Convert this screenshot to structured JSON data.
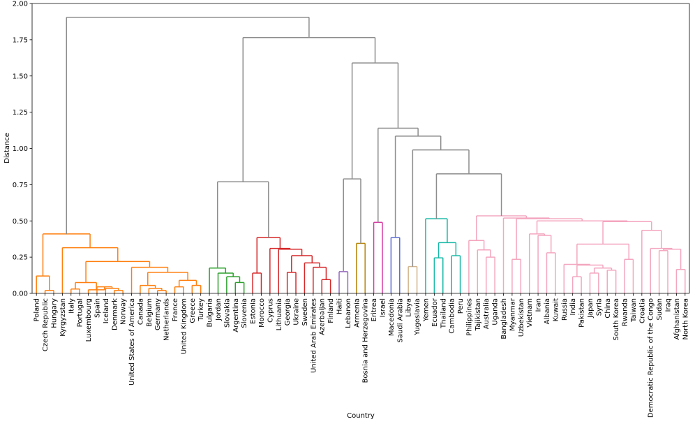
{
  "chart_data": {
    "type": "dendrogram",
    "title": "",
    "xlabel": "Country",
    "ylabel": "Distance",
    "ylim": [
      0,
      2.0
    ],
    "yticks": [
      {
        "value": 0.0,
        "label": "0.00"
      },
      {
        "value": 0.25,
        "label": "0.25"
      },
      {
        "value": 0.5,
        "label": "0.50"
      },
      {
        "value": 0.75,
        "label": "0.75"
      },
      {
        "value": 1.0,
        "label": "1.00"
      },
      {
        "value": 1.25,
        "label": "1.25"
      },
      {
        "value": 1.5,
        "label": "1.50"
      },
      {
        "value": 1.75,
        "label": "1.75"
      },
      {
        "value": 2.0,
        "label": "2.00"
      }
    ],
    "colors": {
      "orange": "#ff7f0e",
      "green": "#2ca02c",
      "red": "#d62728",
      "purple": "#9467bd",
      "brown": "#b8860b",
      "magenta": "#d63aa4",
      "slateblue": "#5b6bd0",
      "tan": "#d2b48c",
      "teal": "#17b8a6",
      "pink": "#f4a6bf",
      "gray": "#8c8c8c"
    },
    "leaves": [
      "Poland",
      "Czech Republic",
      "Hungary",
      "Kyrgyzstan",
      "Italy",
      "Portugal",
      "Luxembourg",
      "Spain",
      "Iceland",
      "Denmark",
      "Norway",
      "United States of America",
      "Canada",
      "Belgium",
      "Germany",
      "Netherlands",
      "France",
      "United Kingdom",
      "Greece",
      "Turkey",
      "Bulgaria",
      "Jordan",
      "Slovakia",
      "Argentina",
      "Slovenia",
      "Estonia",
      "Morocco",
      "Cyprus",
      "Lithuania",
      "Georgia",
      "Ukraine",
      "Sweden",
      "United Arab Emirates",
      "Azerbaijan",
      "Finland",
      "Haiti",
      "Lebanon",
      "Armenia",
      "Bosnia and Herzegovina",
      "Eritrea",
      "Israel",
      "Macedonia",
      "Saudi Arabia",
      "Libya",
      "Yugoslavia",
      "Yemen",
      "Ecuador",
      "Thailand",
      "Cambodia",
      "Peru",
      "Philippines",
      "Tajikistan",
      "Australia",
      "Uganda",
      "Bangladesh",
      "Myanmar",
      "Uzbekistan",
      "Vietnam",
      "Iran",
      "Albania",
      "Kuwait",
      "Russia",
      "India",
      "Pakistan",
      "Japan",
      "Syria",
      "China",
      "South Korea",
      "Rwanda",
      "Taiwan",
      "Croatia",
      "Democratic Republic of the Congo",
      "Sudan",
      "Iraq",
      "Afghanistan",
      "North Korea"
    ],
    "merges": [
      {
        "a": "Czech Republic",
        "b": "Hungary",
        "height": 0.02,
        "id": "c_cz_hu",
        "color": "orange"
      },
      {
        "a": "Poland",
        "b": "c_cz_hu",
        "height": 0.12,
        "id": "c_pl",
        "color": "orange"
      },
      {
        "a": "Italy",
        "b": "Portugal",
        "height": 0.03,
        "id": "c_it_pt",
        "color": "orange"
      },
      {
        "a": "Denmark",
        "b": "Norway",
        "height": 0.02,
        "id": "c_dk_no",
        "color": "orange"
      },
      {
        "a": "Iceland",
        "b": "c_dk_no",
        "height": 0.035,
        "id": "c_is",
        "color": "orange"
      },
      {
        "a": "Spain",
        "b": "c_is",
        "height": 0.045,
        "id": "c_es",
        "color": "orange"
      },
      {
        "a": "Luxembourg",
        "b": "c_es",
        "height": 0.025,
        "id": "c_lu",
        "color": "orange"
      },
      {
        "a": "c_it_pt",
        "b": "c_lu",
        "height": 0.075,
        "id": "c_southn",
        "color": "orange"
      },
      {
        "a": "Germany",
        "b": "Netherlands",
        "height": 0.02,
        "id": "c_de_nl",
        "color": "orange"
      },
      {
        "a": "Belgium",
        "b": "c_de_nl",
        "height": 0.035,
        "id": "c_be",
        "color": "orange"
      },
      {
        "a": "Canada",
        "b": "c_be",
        "height": 0.055,
        "id": "c_ca",
        "color": "orange"
      },
      {
        "a": "France",
        "b": "United Kingdom",
        "height": 0.045,
        "id": "c_fr_uk",
        "color": "orange"
      },
      {
        "a": "Greece",
        "b": "Turkey",
        "height": 0.055,
        "id": "c_gr_tr",
        "color": "orange"
      },
      {
        "a": "c_fr_uk",
        "b": "c_gr_tr",
        "height": 0.09,
        "id": "c_frgr",
        "color": "orange"
      },
      {
        "a": "c_ca",
        "b": "c_frgr",
        "height": 0.145,
        "id": "c_west",
        "color": "orange"
      },
      {
        "a": "United States of America",
        "b": "c_west",
        "height": 0.18,
        "id": "c_us",
        "color": "orange"
      },
      {
        "a": "c_southn",
        "b": "c_us",
        "height": 0.22,
        "id": "c_euro",
        "color": "orange"
      },
      {
        "a": "Kyrgyzstan",
        "b": "c_euro",
        "height": 0.315,
        "id": "c_kg",
        "color": "orange"
      },
      {
        "a": "c_pl",
        "b": "c_kg",
        "height": 0.41,
        "id": "c_orange",
        "color": "orange"
      },
      {
        "a": "Argentina",
        "b": "Slovenia",
        "height": 0.075,
        "id": "c_ar_si",
        "color": "green"
      },
      {
        "a": "Slovakia",
        "b": "c_ar_si",
        "height": 0.115,
        "id": "c_sk",
        "color": "green"
      },
      {
        "a": "Jordan",
        "b": "c_sk",
        "height": 0.14,
        "id": "c_jo",
        "color": "green"
      },
      {
        "a": "Bulgaria",
        "b": "c_jo",
        "height": 0.175,
        "id": "c_green",
        "color": "green"
      },
      {
        "a": "Estonia",
        "b": "Morocco",
        "height": 0.14,
        "id": "c_ee_ma",
        "color": "red"
      },
      {
        "a": "Georgia",
        "b": "Ukraine",
        "height": 0.145,
        "id": "c_ge_ua",
        "color": "red"
      },
      {
        "a": "Azerbaijan",
        "b": "Finland",
        "height": 0.095,
        "id": "c_az_fi",
        "color": "red"
      },
      {
        "a": "United Arab Emirates",
        "b": "c_az_fi",
        "height": 0.18,
        "id": "c_uae",
        "color": "red"
      },
      {
        "a": "Sweden",
        "b": "c_uae",
        "height": 0.21,
        "id": "c_se",
        "color": "red"
      },
      {
        "a": "c_ge_ua",
        "b": "c_se",
        "height": 0.26,
        "id": "c_geo",
        "color": "red"
      },
      {
        "a": "Lithuania",
        "b": "c_geo",
        "height": 0.305,
        "id": "c_lt",
        "color": "red"
      },
      {
        "a": "Cyprus",
        "b": "Lithuania",
        "height": 0.24,
        "id": "c_cy_dummy",
        "color": "red",
        "skip": true
      },
      {
        "a": "Cyprus",
        "b": "c_lt",
        "height": 0.31,
        "id": "c_cy",
        "color": "red"
      },
      {
        "a": "c_ee_ma",
        "b": "c_cy",
        "height": 0.385,
        "id": "c_red",
        "color": "red"
      },
      {
        "a": "c_green",
        "b": "c_red",
        "height": 0.77,
        "id": "c_gr_rd",
        "color": "gray"
      },
      {
        "a": "Haiti",
        "b": "Lebanon",
        "height": 0.15,
        "id": "c_purple",
        "color": "purple"
      },
      {
        "a": "Armenia",
        "b": "Bosnia and Herzegovina",
        "height": 0.345,
        "id": "c_brown",
        "color": "brown"
      },
      {
        "a": "c_purple",
        "b": "c_brown",
        "height": 0.79,
        "id": "c_pb",
        "color": "gray"
      },
      {
        "a": "Eritrea",
        "b": "Israel",
        "height": 0.49,
        "id": "c_magenta",
        "color": "magenta"
      },
      {
        "a": "Macedonia",
        "b": "Saudi Arabia",
        "height": 0.385,
        "id": "c_slate",
        "color": "slateblue"
      },
      {
        "a": "Libya",
        "b": "Yugoslavia",
        "height": 0.185,
        "id": "c_tan",
        "color": "tan"
      },
      {
        "a": "Ecuador",
        "b": "Thailand",
        "height": 0.245,
        "id": "c_ec_th",
        "color": "teal"
      },
      {
        "a": "Cambodia",
        "b": "Peru",
        "height": 0.26,
        "id": "c_kh_pe",
        "color": "teal"
      },
      {
        "a": "c_ec_th",
        "b": "c_kh_pe",
        "height": 0.35,
        "id": "c_ectp",
        "color": "teal"
      },
      {
        "a": "Yemen",
        "b": "c_ectp",
        "height": 0.515,
        "id": "c_teal",
        "color": "teal"
      },
      {
        "a": "Australia",
        "b": "Uganda",
        "height": 0.25,
        "id": "c_au_ug",
        "color": "pink"
      },
      {
        "a": "Tajikistan",
        "b": "c_au_ug",
        "height": 0.3,
        "id": "c_tj",
        "color": "pink"
      },
      {
        "a": "Philippines",
        "b": "c_tj",
        "height": 0.365,
        "id": "c_ph",
        "color": "pink"
      },
      {
        "a": "Myanmar",
        "b": "Uzbekistan",
        "height": 0.235,
        "id": "c_mm_uz",
        "color": "pink"
      },
      {
        "a": "Albania",
        "b": "Kuwait",
        "height": 0.28,
        "id": "c_al_kw",
        "color": "pink"
      },
      {
        "a": "Iran",
        "b": "c_al_kw",
        "height": 0.4,
        "id": "c_ir",
        "color": "pink"
      },
      {
        "a": "India",
        "b": "Pakistan",
        "height": 0.115,
        "id": "c_in_pk",
        "color": "pink"
      },
      {
        "a": "Japan",
        "b": "Syria",
        "height": 0.14,
        "id": "c_jp_sy",
        "color": "pink"
      },
      {
        "a": "China",
        "b": "South Korea",
        "height": 0.16,
        "id": "c_cn_kr",
        "color": "pink"
      },
      {
        "a": "c_jp_sy",
        "b": "c_cn_kr",
        "height": 0.175,
        "id": "c_east",
        "color": "pink"
      },
      {
        "a": "c_in_pk",
        "b": "c_east",
        "height": 0.195,
        "id": "c_asia",
        "color": "pink"
      },
      {
        "a": "Russia",
        "b": "c_asia",
        "height": 0.2,
        "id": "c_ru",
        "color": "pink"
      },
      {
        "a": "Rwanda",
        "b": "Taiwan",
        "height": 0.235,
        "id": "c_rw_tw",
        "color": "pink"
      },
      {
        "a": "c_ru",
        "b": "c_rw_tw",
        "height": 0.34,
        "id": "c_rurw",
        "color": "pink"
      },
      {
        "a": "Sudan",
        "b": "Iraq",
        "height": 0.295,
        "id": "c_sd_iq",
        "color": "pink"
      },
      {
        "a": "Afghanistan",
        "b": "North Korea",
        "height": 0.165,
        "id": "c_af_kp",
        "color": "pink"
      },
      {
        "a": "c_sd_iq",
        "b": "c_af_kp",
        "height": 0.305,
        "id": "c_sdaf",
        "color": "pink"
      },
      {
        "a": "Croatia",
        "b": "Democratic Republic of the Congo",
        "height": 0.0,
        "id": "c_hr_cd_dummy",
        "color": "pink",
        "skip": true
      }
    ],
    "clusters": "see script"
  }
}
